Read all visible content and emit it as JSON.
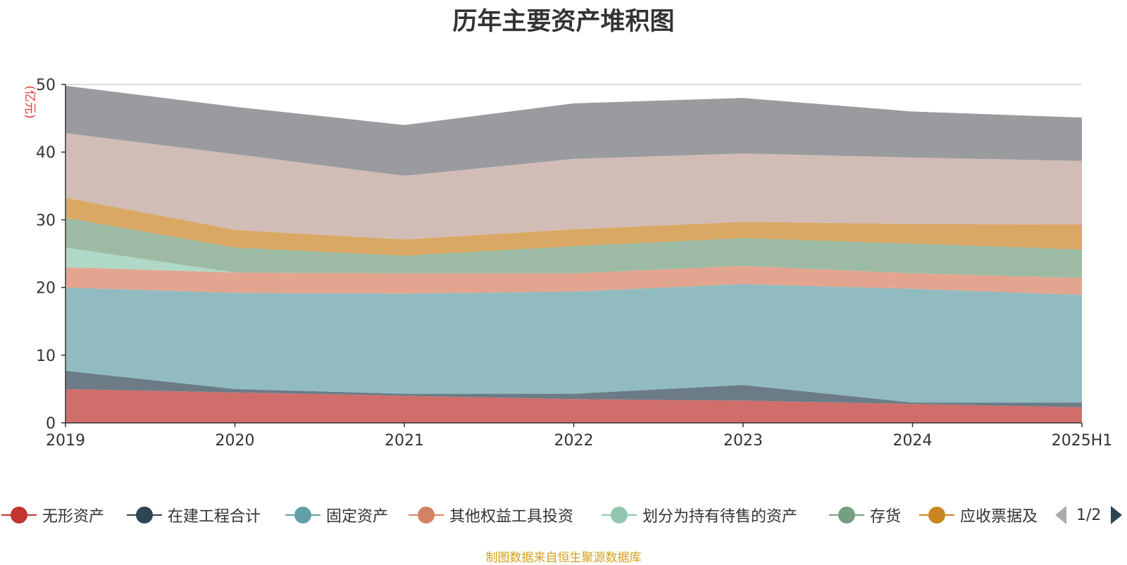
{
  "title": "历年主要资产堆积图",
  "source": "制图数据来自恒生聚源数据库",
  "pager": {
    "text": "1/2"
  },
  "chart_data": {
    "type": "area",
    "stacked": true,
    "unit_label": "(亿元)",
    "categories": [
      "2019",
      "2020",
      "2021",
      "2022",
      "2023",
      "2024",
      "2025H1"
    ],
    "y_ticks": [
      0,
      10,
      20,
      30,
      40,
      50
    ],
    "ylim": [
      0,
      50
    ],
    "grid": true,
    "series": [
      {
        "name": "无形资产",
        "color": "#d06e6c",
        "legend_color": "#c23531",
        "values": [
          5.0,
          4.5,
          4.0,
          3.5,
          3.3,
          2.8,
          2.3
        ],
        "in_legend": true
      },
      {
        "name": "在建工程合计",
        "color": "#6b7c86",
        "legend_color": "#2f4554",
        "values": [
          2.7,
          0.5,
          0.3,
          0.8,
          2.3,
          0.2,
          0.7
        ],
        "in_legend": true
      },
      {
        "name": "固定资产",
        "color": "#91bbc1",
        "legend_color": "#61a0a8",
        "values": [
          12.3,
          14.2,
          14.8,
          15.1,
          14.9,
          16.8,
          15.9
        ],
        "in_legend": true
      },
      {
        "name": "其他权益工具投资",
        "color": "#e3a590",
        "legend_color": "#d48265",
        "values": [
          3.0,
          3.0,
          3.0,
          2.7,
          2.7,
          2.3,
          2.5
        ],
        "in_legend": true
      },
      {
        "name": "划分为持有待售的资产",
        "color": "#b0d8c6",
        "legend_color": "#91c7ae",
        "values": [
          2.9,
          0.0,
          0.0,
          0.0,
          0.0,
          0.0,
          0.0
        ],
        "in_legend": true
      },
      {
        "name": "存货",
        "color": "#9dbba4",
        "legend_color": "#749f83",
        "values": [
          4.4,
          3.7,
          2.6,
          4.0,
          4.1,
          4.4,
          4.2
        ],
        "in_legend": true
      },
      {
        "name": "应收票据及",
        "color": "#d9a865",
        "legend_color": "#ca8622",
        "values": [
          3.0,
          2.6,
          2.4,
          2.5,
          2.4,
          2.9,
          3.7
        ],
        "in_legend": true
      },
      {
        "name": "",
        "color": "#d1bcb6",
        "legend_color": "#bda29a",
        "values": [
          9.5,
          11.2,
          9.4,
          10.4,
          10.1,
          9.8,
          9.4
        ],
        "in_legend": false
      },
      {
        "name": "",
        "color": "#9a9b9f",
        "legend_color": "#6e7074",
        "values": [
          7.0,
          7.0,
          7.5,
          8.2,
          8.2,
          6.8,
          6.4
        ],
        "in_legend": false
      }
    ]
  }
}
